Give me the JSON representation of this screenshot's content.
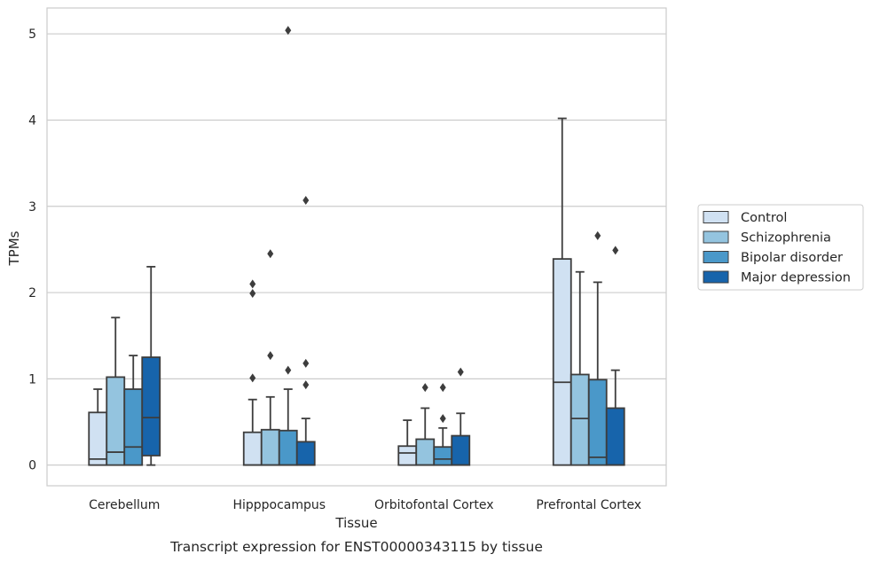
{
  "chart_data": {
    "type": "box",
    "caption": "Transcript expression for ENST00000343115 by tissue",
    "xlabel": "Tissue",
    "ylabel": "TPMs",
    "ylim": [
      -0.24,
      5.3
    ],
    "yticks": [
      0,
      1,
      2,
      3,
      4,
      5
    ],
    "grid": true,
    "legend_position": "right",
    "categories": [
      "Cerebellum",
      "Hipppocampus",
      "Orbitofontal Cortex",
      "Prefrontal Cortex"
    ],
    "series": [
      {
        "name": "Control",
        "color": "#d0e1f2",
        "boxes": [
          {
            "whisker_low": 0,
            "q1": 0,
            "median": 0.07,
            "q3": 0.61,
            "whisker_high": 0.88,
            "outliers": []
          },
          {
            "whisker_low": 0,
            "q1": 0,
            "median": 0,
            "q3": 0.38,
            "whisker_high": 0.76,
            "outliers": [
              1.01,
              1.99,
              2.1
            ]
          },
          {
            "whisker_low": 0,
            "q1": 0,
            "median": 0.14,
            "q3": 0.22,
            "whisker_high": 0.52,
            "outliers": []
          },
          {
            "whisker_low": 0,
            "q1": 0,
            "median": 0.96,
            "q3": 2.39,
            "whisker_high": 4.02,
            "outliers": []
          }
        ]
      },
      {
        "name": "Schizophrenia",
        "color": "#94c4df",
        "boxes": [
          {
            "whisker_low": 0,
            "q1": 0,
            "median": 0.15,
            "q3": 1.02,
            "whisker_high": 1.71,
            "outliers": []
          },
          {
            "whisker_low": 0,
            "q1": 0,
            "median": 0,
            "q3": 0.41,
            "whisker_high": 0.79,
            "outliers": [
              1.27,
              2.45
            ]
          },
          {
            "whisker_low": 0,
            "q1": 0,
            "median": 0,
            "q3": 0.3,
            "whisker_high": 0.66,
            "outliers": [
              0.9
            ]
          },
          {
            "whisker_low": 0,
            "q1": 0,
            "median": 0.54,
            "q3": 1.05,
            "whisker_high": 2.24,
            "outliers": []
          }
        ]
      },
      {
        "name": "Bipolar disorder",
        "color": "#4a98c9",
        "boxes": [
          {
            "whisker_low": 0,
            "q1": 0,
            "median": 0.21,
            "q3": 0.88,
            "whisker_high": 1.27,
            "outliers": []
          },
          {
            "whisker_low": 0,
            "q1": 0,
            "median": 0,
            "q3": 0.4,
            "whisker_high": 0.88,
            "outliers": [
              1.1,
              5.04
            ]
          },
          {
            "whisker_low": 0,
            "q1": 0,
            "median": 0.07,
            "q3": 0.21,
            "whisker_high": 0.43,
            "outliers": [
              0.54,
              0.9
            ]
          },
          {
            "whisker_low": 0,
            "q1": 0,
            "median": 0.09,
            "q3": 0.99,
            "whisker_high": 2.12,
            "outliers": [
              2.66
            ]
          }
        ]
      },
      {
        "name": "Major depression",
        "color": "#1764ab",
        "boxes": [
          {
            "whisker_low": 0,
            "q1": 0.11,
            "median": 0.55,
            "q3": 1.25,
            "whisker_high": 2.3,
            "outliers": []
          },
          {
            "whisker_low": 0,
            "q1": 0,
            "median": 0,
            "q3": 0.27,
            "whisker_high": 0.54,
            "outliers": [
              0.93,
              1.18,
              3.07
            ]
          },
          {
            "whisker_low": 0,
            "q1": 0,
            "median": 0,
            "q3": 0.34,
            "whisker_high": 0.6,
            "outliers": [
              1.08
            ]
          },
          {
            "whisker_low": 0,
            "q1": 0,
            "median": 0,
            "q3": 0.66,
            "whisker_high": 1.1,
            "outliers": [
              2.49
            ]
          }
        ]
      }
    ]
  }
}
